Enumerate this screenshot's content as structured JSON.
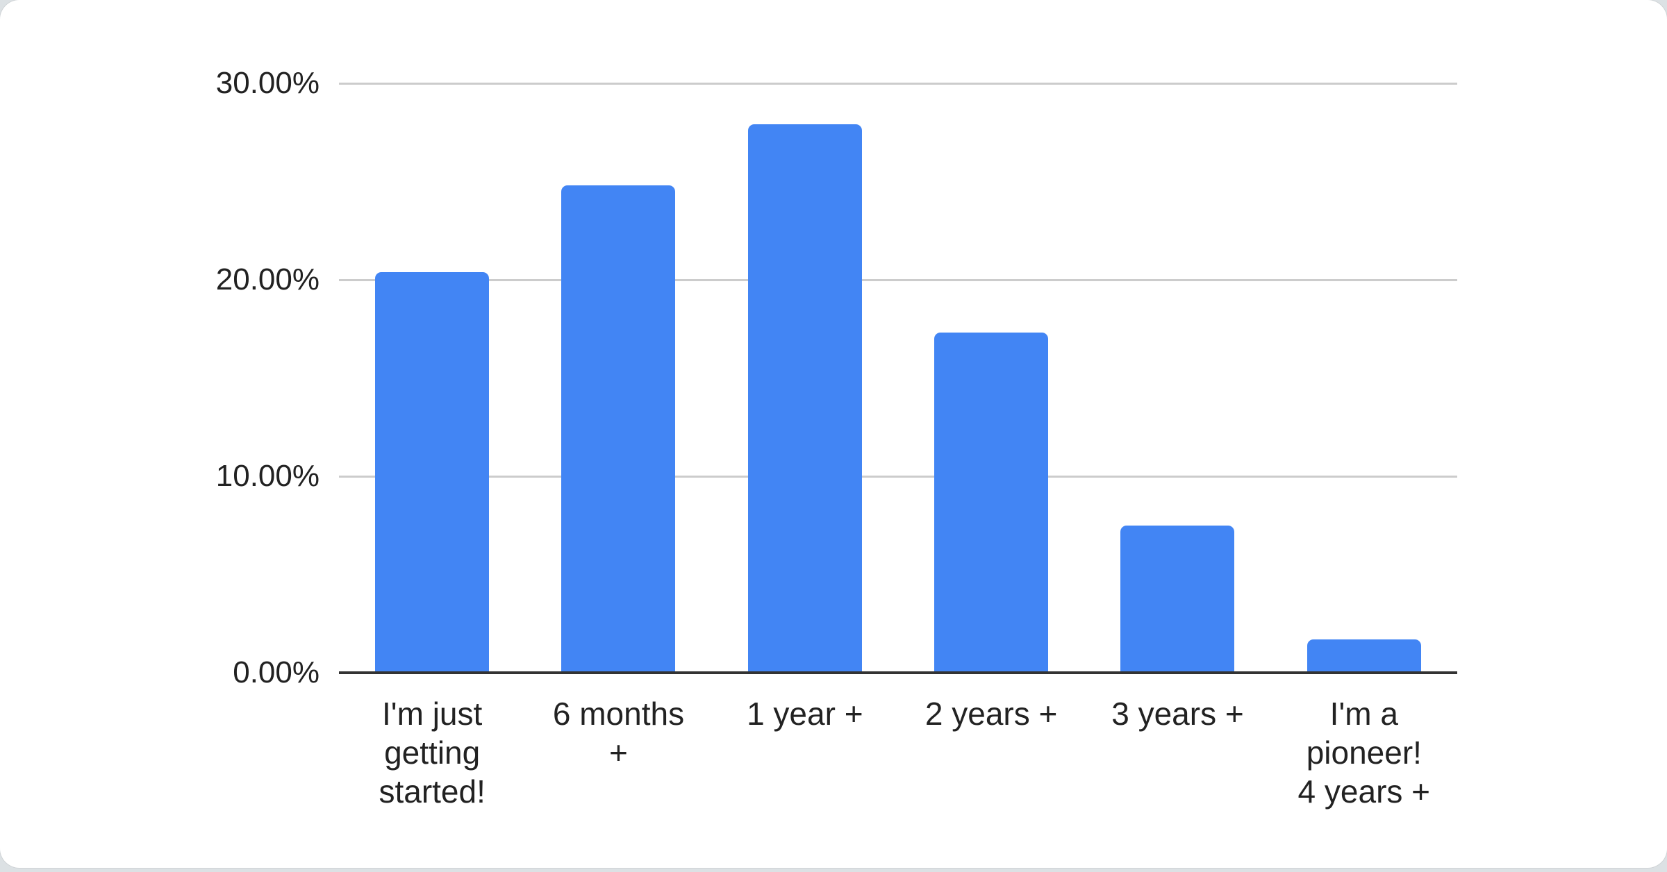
{
  "page": {
    "background_color": "#dce1e4",
    "card_color": "#ffffff"
  },
  "chart_data": {
    "type": "bar",
    "title": "",
    "xlabel": "",
    "ylabel": "",
    "categories": [
      "I'm just getting started!",
      "6 months +",
      "1 year +",
      "2 years +",
      "3 years +",
      "I'm a pioneer! 4 years +"
    ],
    "category_label_lines": [
      "I'm just\ngetting\nstarted!",
      "6 months\n+",
      "1 year +",
      "2 years +",
      "3 years +",
      "I'm a\npioneer!\n4 years +"
    ],
    "values": [
      20.4,
      24.8,
      27.9,
      17.3,
      7.5,
      1.7
    ],
    "unit": "%",
    "ylim": [
      0,
      30
    ],
    "ytick_interval": 10,
    "ytick_labels": [
      "30.00%",
      "20.00%",
      "10.00%",
      "0.00%"
    ],
    "grid": true,
    "legend_position": "none",
    "bar_color": "#4285f4",
    "gridline_color": "#cccccc",
    "axis_line_color": "#333333",
    "label_color": "#222222"
  }
}
